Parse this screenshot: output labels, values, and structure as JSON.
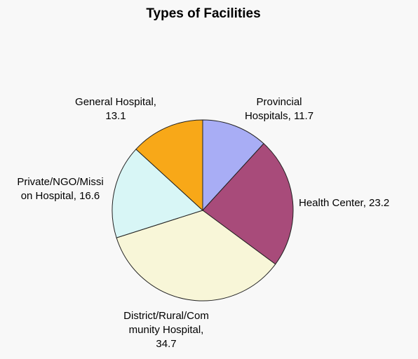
{
  "chart_data": {
    "type": "pie",
    "title": "Types of Facilities",
    "slices": [
      {
        "label": "Provincial Hospitals",
        "value": 11.7,
        "color": "#a8adf5",
        "label_lines": [
          "Provincial",
          "Hospitals, 11.7"
        ]
      },
      {
        "label": "Health Center",
        "value": 23.2,
        "color": "#a84b7a",
        "label_lines": [
          "Health Center, 23.2"
        ]
      },
      {
        "label": "District/Rural/Community Hospital",
        "value": 34.7,
        "color": "#f8f6d8",
        "label_lines": [
          "District/Rural/Com",
          "munity Hospital,",
          "34.7"
        ]
      },
      {
        "label": "Private/NGO/Mission Hospital",
        "value": 16.6,
        "color": "#d8f6f6",
        "label_lines": [
          "Private/NGO/Missi",
          "on Hospital, 16.6"
        ]
      },
      {
        "label": "General Hospital",
        "value": 13.1,
        "color": "#f8a818",
        "label_lines": [
          "General Hospital,",
          "13.1"
        ]
      }
    ],
    "start_angle_deg": 0,
    "direction": "clockwise"
  }
}
